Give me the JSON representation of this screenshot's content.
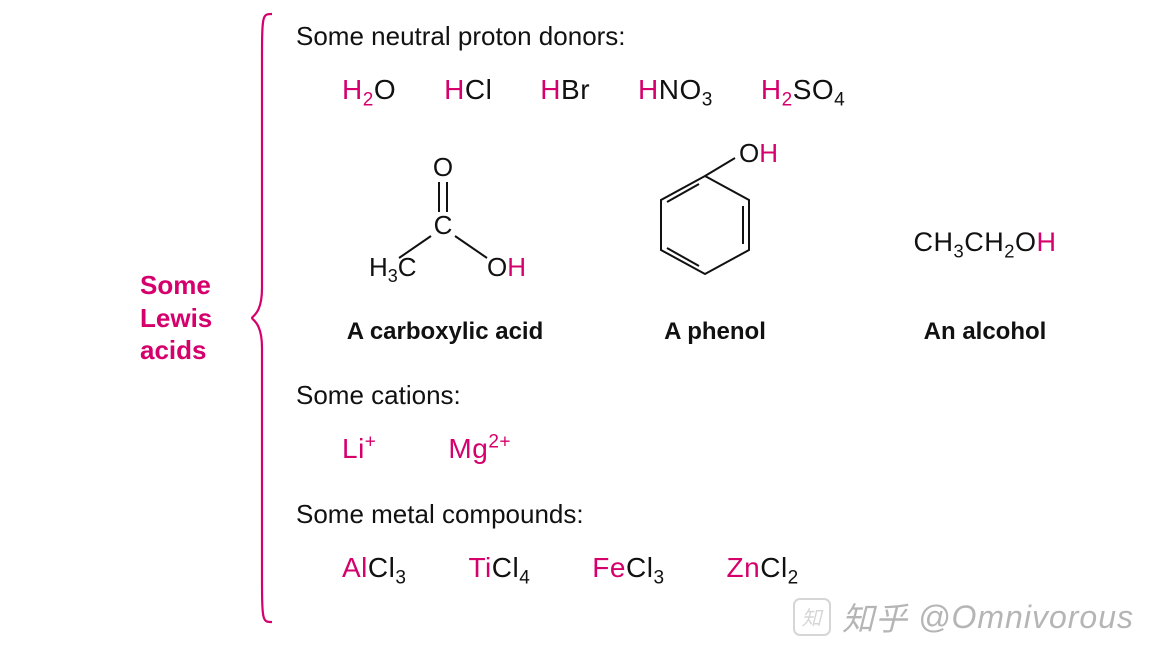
{
  "colors": {
    "highlight": "#d6006c",
    "text": "#111111",
    "line": "#111111",
    "background": "#ffffff",
    "watermark": "rgba(120,120,120,0.55)"
  },
  "left_label": {
    "line1": "Some",
    "line2": "Lewis",
    "line3": "acids"
  },
  "section1": {
    "title": "Some neutral proton donors:",
    "formulas": [
      {
        "hl": "H",
        "sub1": "2",
        "rest": "O"
      },
      {
        "hl": "H",
        "rest": "Cl"
      },
      {
        "hl": "H",
        "rest": "Br"
      },
      {
        "hl": "H",
        "rest": "NO",
        "sub2": "3"
      },
      {
        "hl": "H",
        "sub1": "2",
        "rest": "SO",
        "sub2": "4"
      }
    ]
  },
  "structures": {
    "carboxylic": {
      "label": "A carboxylic acid",
      "atoms": {
        "ch3": "H",
        "ch3_sub": "3",
        "ch3_c": "C",
        "c": "C",
        "o_dbl": "O",
        "oh_o": "O",
        "oh_h": "H"
      }
    },
    "phenol": {
      "label": "A phenol",
      "atoms": {
        "oh_o": "O",
        "oh_h": "H"
      }
    },
    "alcohol": {
      "label": "An alcohol",
      "formula": {
        "p1": "CH",
        "s1": "3",
        "p2": "CH",
        "s2": "2",
        "p3": "O",
        "hl": "H"
      }
    }
  },
  "section2": {
    "title": "Some cations:",
    "ions": [
      {
        "sym": "Li",
        "charge": "+"
      },
      {
        "sym": "Mg",
        "charge": "2+"
      }
    ]
  },
  "section3": {
    "title": "Some metal compounds:",
    "compounds": [
      {
        "metal": "Al",
        "halide": "Cl",
        "sub": "3"
      },
      {
        "metal": "Ti",
        "halide": "Cl",
        "sub": "4"
      },
      {
        "metal": "Fe",
        "halide": "Cl",
        "sub": "3"
      },
      {
        "metal": "Zn",
        "halide": "Cl",
        "sub": "2"
      }
    ]
  },
  "watermark": {
    "brand": "知乎",
    "handle": "@Omnivorous"
  }
}
